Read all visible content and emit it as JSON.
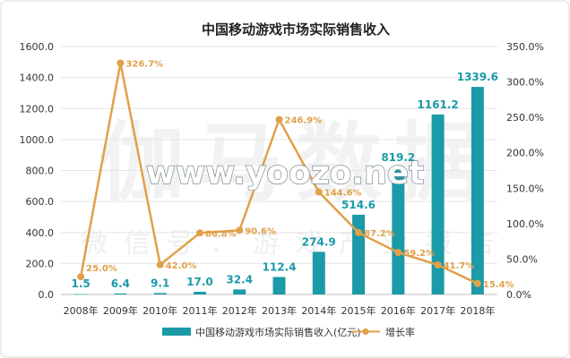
{
  "watermarks": {
    "main": "伽马数据",
    "sub": "微信号：游戏产业报告",
    "site": "www.yoozo.net"
  },
  "colors": {
    "bar": "#1b9aa8",
    "bar_label": "#1b9aa8",
    "line": "#e1a04a",
    "line_label": "#e1a04a",
    "title": "#222222",
    "axis_text": "#333333",
    "grid": "#e6e6e6"
  },
  "chart_data": {
    "type": "bar",
    "title": "中国移动游戏市场实际销售收入",
    "categories": [
      "2008年",
      "2009年",
      "2010年",
      "2011年",
      "2012年",
      "2013年",
      "2014年",
      "2015年",
      "2016年",
      "2017年",
      "2018年"
    ],
    "series": [
      {
        "name": "中国移动游戏市场实际销售收入(亿元)",
        "type": "bar",
        "axis": "left",
        "values": [
          1.5,
          6.4,
          9.1,
          17.0,
          32.4,
          112.4,
          274.9,
          514.6,
          819.2,
          1161.2,
          1339.6
        ],
        "labels": [
          "1.5",
          "6.4",
          "9.1",
          "17.0",
          "32.4",
          "112.4",
          "274.9",
          "514.6",
          "819.2",
          "1161.2",
          "1339.6"
        ]
      },
      {
        "name": "增长率",
        "type": "line",
        "axis": "right",
        "values": [
          25.0,
          326.7,
          42.0,
          86.8,
          90.6,
          246.9,
          144.6,
          87.2,
          59.2,
          41.7,
          15.4
        ],
        "labels": [
          "25.0%",
          "326.7%",
          "42.0%",
          "86.8%",
          "90.6%",
          "246.9%",
          "144.6%",
          "87.2%",
          "59.2%",
          "41.7%",
          "15.4%"
        ]
      }
    ],
    "y_left": {
      "min": 0,
      "max": 1600,
      "ticks": [
        "0.0",
        "200.0",
        "400.0",
        "600.0",
        "800.0",
        "1000.0",
        "1200.0",
        "1400.0",
        "1600.0"
      ]
    },
    "y_right": {
      "min": 0,
      "max": 350,
      "ticks": [
        "0.0%",
        "50.0%",
        "100.0%",
        "150.0%",
        "200.0%",
        "250.0%",
        "300.0%",
        "350.0%"
      ]
    },
    "legend_position": "bottom"
  }
}
